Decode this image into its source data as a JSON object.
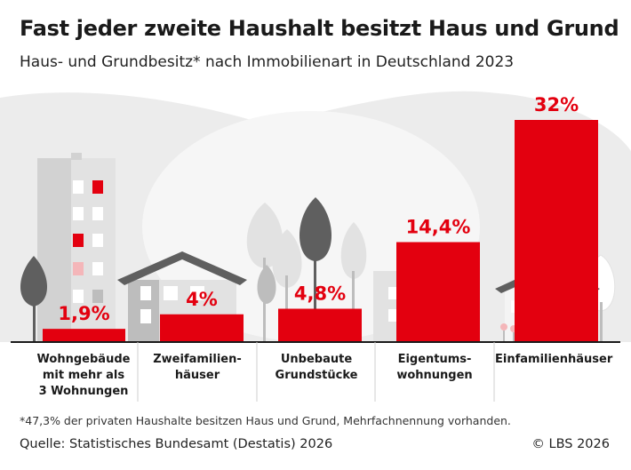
{
  "header": {
    "title": "Fast jeder zweite Haushalt besitzt Haus und Grund",
    "subtitle": "Haus- und Grundbesitz* nach Immobilienart in Deutschland 2023"
  },
  "footer": {
    "footnote": "*47,3% der privaten Haushalte besitzen Haus und Grund, Mehrfachnennung vorhanden.",
    "source": "Quelle: Statistisches Bundesamt (Destatis) 2026",
    "copyright": "© LBS 2026"
  },
  "colors": {
    "bar": "#e3000f",
    "value_text": "#e3000f",
    "background_blob": "#ececec",
    "building_light": "#e2e2e2",
    "building_mid": "#bdbdbd",
    "building_dark": "#5f5f5f",
    "baseline": "#1a1a1a"
  },
  "icons": [
    "apartment-building-icon",
    "two-family-house-icon",
    "trees-icon",
    "condominium-icon",
    "single-family-house-icon"
  ],
  "chart_data": {
    "type": "bar",
    "categories": [
      "Wohngebäude\nmit mehr als\n3 Wohnungen",
      "Zweifamilien-\nhäuser",
      "Unbebaute\nGrundstücke",
      "Eigentums-\nwohnungen",
      "Einfamilienhäuser"
    ],
    "values": [
      1.9,
      4,
      4.8,
      14.4,
      32
    ],
    "value_labels": [
      "1,9%",
      "4%",
      "4,8%",
      "14,4%",
      "32%"
    ],
    "ylim": [
      0,
      32
    ],
    "title": "",
    "xlabel": "",
    "ylabel": "",
    "grid": false,
    "legend": "none"
  }
}
